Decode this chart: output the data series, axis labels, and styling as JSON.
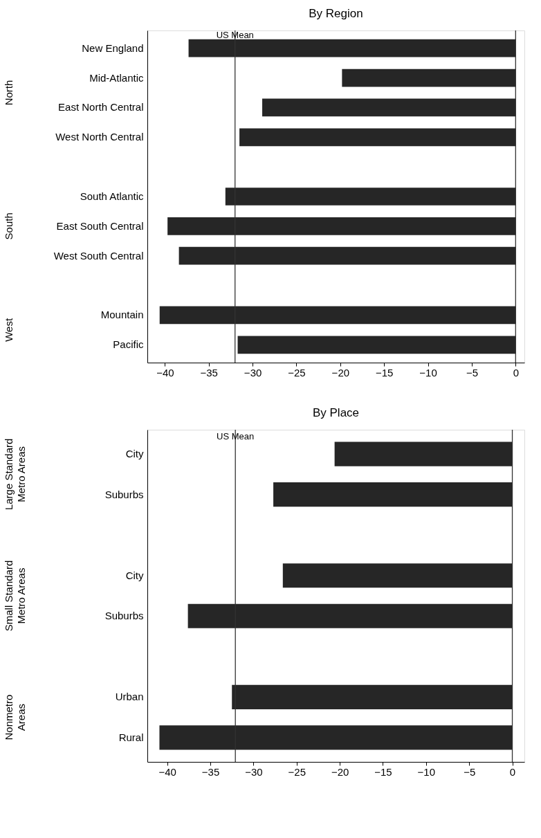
{
  "chart_data": [
    {
      "type": "bar",
      "orientation": "horizontal",
      "title": "By Region",
      "categories": [
        "New England",
        "Mid-Atlantic",
        "East North Central",
        "West North Central",
        null,
        "South Atlantic",
        "East South Central",
        "West South Central",
        null,
        "Mountain",
        "Pacific"
      ],
      "values": [
        -37.3,
        -19.8,
        -28.9,
        -31.5,
        null,
        -33.1,
        -39.7,
        -38.4,
        null,
        -40.6,
        -31.7
      ],
      "color": "#262626",
      "xlim": [
        -42,
        1
      ],
      "xticks": [
        -40,
        -35,
        -30,
        -25,
        -20,
        -15,
        -10,
        -5,
        0
      ],
      "grid": false,
      "ref_lines": [
        {
          "axis": "x",
          "value": -32.0,
          "label": "US Mean"
        },
        {
          "axis": "x",
          "value": 0,
          "label": null
        }
      ],
      "annotations": [
        "North",
        "South",
        "West"
      ]
    },
    {
      "type": "bar",
      "orientation": "horizontal",
      "title": "By Place",
      "categories": [
        "City",
        "Suburbs",
        null,
        "City",
        "Suburbs",
        null,
        "Urban",
        "Rural"
      ],
      "values": [
        -20.6,
        -27.7,
        null,
        -26.6,
        -37.6,
        null,
        -32.5,
        -40.9
      ],
      "color": "#262626",
      "xlim": [
        -42.3,
        1.4
      ],
      "xticks": [
        -40,
        -35,
        -30,
        -25,
        -20,
        -15,
        -10,
        -5,
        0
      ],
      "grid": false,
      "ref_lines": [
        {
          "axis": "x",
          "value": -32.1,
          "label": "US Mean"
        },
        {
          "axis": "x",
          "value": 0,
          "label": null
        }
      ],
      "annotations": [
        "Large Standard\nMetro Areas",
        "Small Standard\nMetro Areas",
        "Nonmetro\nAreas"
      ]
    }
  ]
}
